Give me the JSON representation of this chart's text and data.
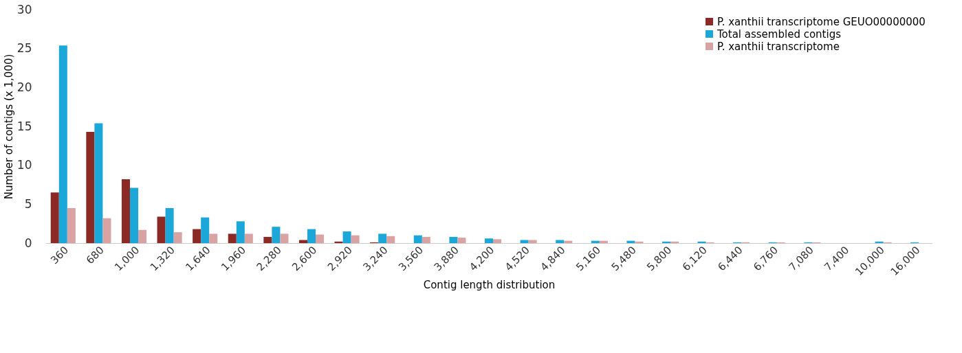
{
  "chart_data": {
    "type": "bar",
    "xlabel": "Contig length distribution",
    "ylabel": "Number of contigs (x 1,000)",
    "categories": [
      "360",
      "680",
      "1,000",
      "1,320",
      "1,640",
      "1,960",
      "2,280",
      "2,600",
      "2,920",
      "3,240",
      "3,560",
      "3,880",
      "4,200",
      "4,520",
      "4,840",
      "5,160",
      "5,480",
      "5,800",
      "6,120",
      "6,440",
      "6,760",
      "7,080",
      "7,400",
      "10,000",
      "16,000"
    ],
    "series": [
      {
        "name": "P. xanthii transcriptome GEUO00000000",
        "color": "#8b2a25",
        "values": [
          6.5,
          14.3,
          8.2,
          3.4,
          1.8,
          1.2,
          0.8,
          0.4,
          0.2,
          0.1,
          0,
          0,
          0,
          0,
          0,
          0,
          0,
          0,
          0,
          0,
          0,
          0,
          0,
          0,
          0
        ]
      },
      {
        "name": "Total assembled contigs",
        "color": "#1ba8d8",
        "values": [
          25.4,
          15.4,
          7.1,
          4.5,
          3.3,
          2.8,
          2.1,
          1.8,
          1.5,
          1.2,
          1.0,
          0.8,
          0.6,
          0.4,
          0.4,
          0.3,
          0.3,
          0.2,
          0.2,
          0.1,
          0.1,
          0.1,
          0,
          0.2,
          0.1
        ]
      },
      {
        "name": "P. xanthii transcriptome",
        "color": "#d9a3a3",
        "values": [
          4.5,
          3.2,
          1.7,
          1.4,
          1.2,
          1.2,
          1.2,
          1.1,
          1.0,
          0.9,
          0.8,
          0.7,
          0.5,
          0.4,
          0.3,
          0.3,
          0.2,
          0.2,
          0.1,
          0.1,
          0.1,
          0.1,
          0,
          0.1,
          0
        ]
      }
    ],
    "ylim": [
      0,
      30
    ],
    "yticks": [
      0,
      5,
      10,
      15,
      20,
      25,
      30
    ],
    "legend": "top right"
  }
}
